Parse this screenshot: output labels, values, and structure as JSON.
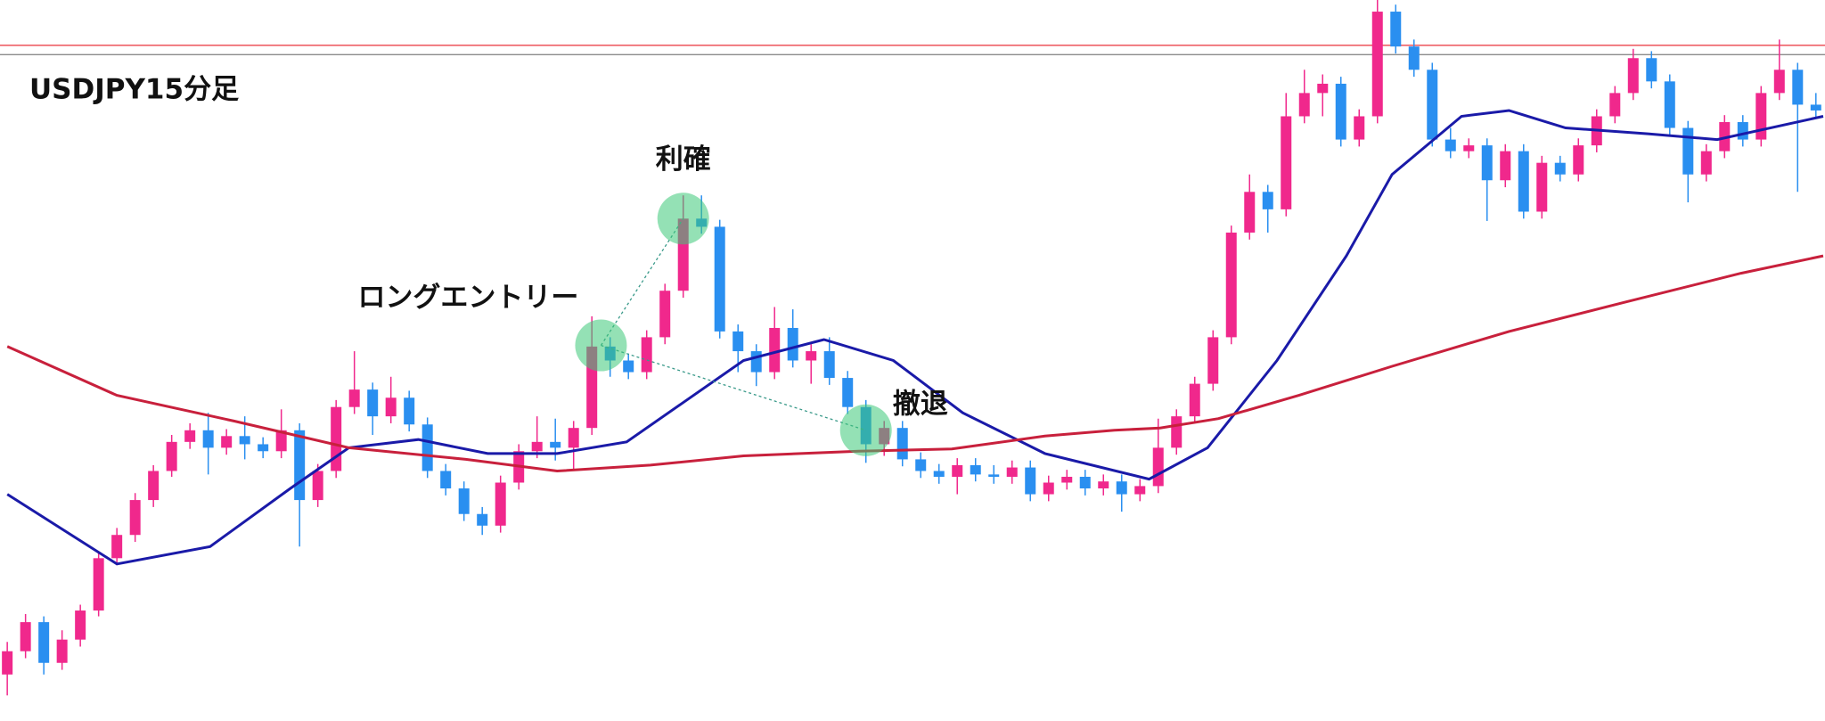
{
  "chart_data": {
    "type": "candlestick",
    "title": "USDJPY15分足",
    "ylim": [
      0,
      620
    ],
    "xlim": [
      -0.3,
      99.4
    ],
    "up_color": "#f0288c",
    "down_color": "#2a8ff0",
    "candles": [
      [
        40,
        68,
        22,
        60
      ],
      [
        60,
        92,
        54,
        85
      ],
      [
        85,
        90,
        40,
        50
      ],
      [
        50,
        78,
        44,
        70
      ],
      [
        70,
        100,
        64,
        95
      ],
      [
        95,
        146,
        90,
        140
      ],
      [
        140,
        166,
        134,
        160
      ],
      [
        160,
        196,
        154,
        190
      ],
      [
        190,
        220,
        184,
        215
      ],
      [
        215,
        246,
        210,
        240
      ],
      [
        240,
        256,
        234,
        250
      ],
      [
        250,
        265,
        212,
        235
      ],
      [
        235,
        251,
        229,
        245
      ],
      [
        245,
        262,
        225,
        238
      ],
      [
        238,
        244,
        226,
        232
      ],
      [
        232,
        268,
        226,
        250
      ],
      [
        250,
        256,
        150,
        190
      ],
      [
        190,
        221,
        184,
        215
      ],
      [
        215,
        276,
        209,
        270
      ],
      [
        270,
        318,
        264,
        285
      ],
      [
        285,
        291,
        246,
        262
      ],
      [
        262,
        296,
        256,
        278
      ],
      [
        278,
        284,
        249,
        255
      ],
      [
        255,
        261,
        209,
        215
      ],
      [
        215,
        221,
        194,
        200
      ],
      [
        200,
        206,
        172,
        178
      ],
      [
        178,
        184,
        160,
        168
      ],
      [
        168,
        211,
        162,
        205
      ],
      [
        205,
        238,
        199,
        232
      ],
      [
        232,
        262,
        226,
        240
      ],
      [
        240,
        260,
        224,
        235
      ],
      [
        235,
        258,
        215,
        252
      ],
      [
        252,
        348,
        246,
        322
      ],
      [
        322,
        330,
        296,
        310
      ],
      [
        310,
        316,
        294,
        300
      ],
      [
        300,
        336,
        294,
        330
      ],
      [
        330,
        376,
        324,
        370
      ],
      [
        370,
        452,
        364,
        432
      ],
      [
        432,
        452,
        419,
        425
      ],
      [
        425,
        431,
        329,
        335
      ],
      [
        335,
        341,
        300,
        318
      ],
      [
        318,
        324,
        288,
        300
      ],
      [
        300,
        356,
        294,
        338
      ],
      [
        338,
        354,
        304,
        310
      ],
      [
        310,
        324,
        290,
        318
      ],
      [
        318,
        330,
        289,
        295
      ],
      [
        295,
        301,
        264,
        270
      ],
      [
        270,
        276,
        222,
        238
      ],
      [
        238,
        258,
        228,
        252
      ],
      [
        252,
        258,
        219,
        225
      ],
      [
        225,
        231,
        209,
        215
      ],
      [
        215,
        221,
        204,
        210
      ],
      [
        210,
        226,
        195,
        220
      ],
      [
        220,
        226,
        206,
        212
      ],
      [
        212,
        220,
        204,
        210
      ],
      [
        210,
        224,
        204,
        218
      ],
      [
        218,
        224,
        189,
        195
      ],
      [
        195,
        211,
        189,
        205
      ],
      [
        205,
        216,
        199,
        210
      ],
      [
        210,
        216,
        194,
        200
      ],
      [
        200,
        212,
        194,
        206
      ],
      [
        206,
        212,
        180,
        195
      ],
      [
        195,
        208,
        189,
        202
      ],
      [
        202,
        260,
        196,
        235
      ],
      [
        235,
        268,
        229,
        262
      ],
      [
        262,
        296,
        256,
        290
      ],
      [
        290,
        336,
        284,
        330
      ],
      [
        330,
        426,
        324,
        420
      ],
      [
        420,
        470,
        414,
        455
      ],
      [
        455,
        461,
        420,
        440
      ],
      [
        440,
        540,
        434,
        520
      ],
      [
        520,
        560,
        514,
        540
      ],
      [
        540,
        556,
        520,
        548
      ],
      [
        548,
        554,
        494,
        500
      ],
      [
        500,
        526,
        494,
        520
      ],
      [
        520,
        620,
        514,
        610
      ],
      [
        610,
        616,
        574,
        580
      ],
      [
        580,
        586,
        554,
        560
      ],
      [
        560,
        566,
        494,
        500
      ],
      [
        500,
        510,
        484,
        490
      ],
      [
        490,
        501,
        484,
        495
      ],
      [
        495,
        501,
        430,
        465
      ],
      [
        465,
        496,
        459,
        490
      ],
      [
        490,
        496,
        432,
        438
      ],
      [
        438,
        486,
        432,
        480
      ],
      [
        480,
        486,
        464,
        470
      ],
      [
        470,
        501,
        464,
        495
      ],
      [
        495,
        526,
        489,
        520
      ],
      [
        520,
        546,
        514,
        540
      ],
      [
        540,
        578,
        534,
        570
      ],
      [
        570,
        576,
        544,
        550
      ],
      [
        550,
        556,
        504,
        510
      ],
      [
        510,
        516,
        446,
        470
      ],
      [
        470,
        496,
        464,
        490
      ],
      [
        490,
        521,
        484,
        515
      ],
      [
        515,
        521,
        494,
        500
      ],
      [
        500,
        546,
        494,
        540
      ],
      [
        540,
        586,
        534,
        560
      ],
      [
        560,
        566,
        455,
        530
      ],
      [
        530,
        540,
        519,
        525
      ]
    ],
    "lines": [
      {
        "color": "#1a1aa8",
        "x": [
          0,
          6,
          11.1,
          15.5,
          18.7,
          22.5,
          26.3,
          30.1,
          33.9,
          37.1,
          40.3,
          44.7,
          48.5,
          52.3,
          56.8,
          62.5,
          65.7,
          69.5,
          73.3,
          75.8,
          79.6,
          82.2,
          85.3,
          89.8,
          93.6,
          99.4
        ],
        "values": [
          195,
          135,
          150,
          200,
          235,
          242,
          230,
          230,
          240,
          275,
          310,
          328,
          310,
          265,
          230,
          208,
          235,
          310,
          400,
          470,
          520,
          525,
          510,
          505,
          500,
          520
        ]
      },
      {
        "color": "#c8203c",
        "x": [
          0,
          6,
          12.4,
          18.7,
          25.1,
          30.1,
          35.2,
          40.3,
          46.6,
          51.7,
          56.8,
          60.6,
          63.1,
          66.3,
          70.7,
          75.8,
          82.2,
          88.5,
          94.9,
          99.4
        ],
        "values": [
          322,
          280,
          258,
          235,
          225,
          215,
          220,
          228,
          232,
          234,
          245,
          250,
          252,
          260,
          280,
          305,
          335,
          360,
          385,
          400
        ]
      }
    ],
    "hlines": [
      {
        "value": 581,
        "color": "#e8303a"
      },
      {
        "value": 573,
        "color": "#8a8a8a"
      }
    ],
    "annotations": [
      {
        "text": "ロングエントリー",
        "x": 32.5,
        "y": 323
      },
      {
        "text": "利確",
        "x": 37,
        "y": 432
      },
      {
        "text": "撤退",
        "x": 47,
        "y": 250
      }
    ]
  }
}
